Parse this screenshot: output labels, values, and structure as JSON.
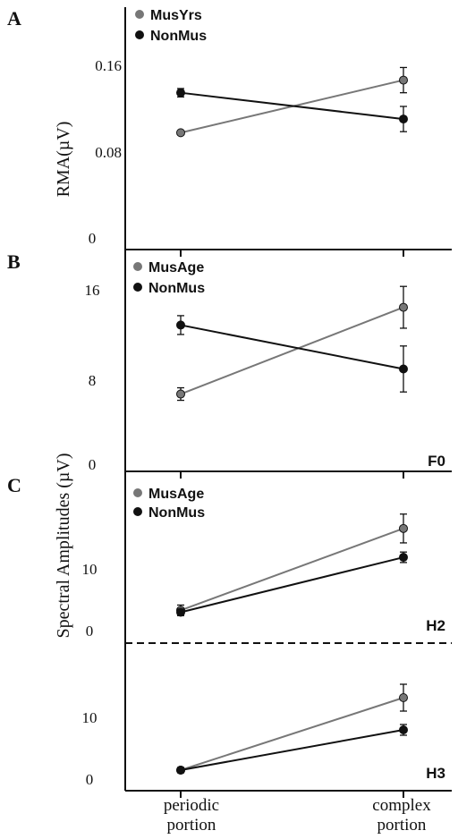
{
  "figure": {
    "panel_letters": [
      "A",
      "B",
      "C"
    ],
    "x_categories": [
      {
        "line1": "periodic",
        "line2": "portion"
      },
      {
        "line1": "complex",
        "line2": "portion"
      }
    ],
    "colors": {
      "gray_series": "#777777",
      "black_series": "#111111",
      "axis": "#111111"
    }
  },
  "chart_data": [
    {
      "type": "line",
      "panel": "A",
      "ylabel": "RMA(µV)",
      "yticks": [
        "0.16",
        "0.08",
        "0"
      ],
      "ytick_values": [
        0.16,
        0.08,
        0
      ],
      "ylim": [
        0,
        0.21
      ],
      "categories": [
        "periodic portion",
        "complex portion"
      ],
      "legend": [
        "MusYrs",
        "NonMus"
      ],
      "series": [
        {
          "name": "MusYrs",
          "color": "#777777",
          "values": [
            0.1,
            0.15
          ],
          "errors": [
            0.0,
            0.012
          ]
        },
        {
          "name": "NonMus",
          "color": "#111111",
          "values": [
            0.138,
            0.113
          ],
          "errors": [
            0.004,
            0.012
          ]
        }
      ]
    },
    {
      "type": "line",
      "panel": "B",
      "ylabel": "Spectral Amplitudes (µV)",
      "harmonic_label": "F0",
      "yticks": [
        "16",
        "8",
        "0"
      ],
      "ytick_values": [
        16,
        8,
        0
      ],
      "ylim": [
        0,
        19
      ],
      "categories": [
        "periodic portion",
        "complex portion"
      ],
      "legend": [
        "MusAge",
        "NonMus"
      ],
      "series": [
        {
          "name": "MusAge",
          "color": "#777777",
          "values": [
            6.8,
            15.1
          ],
          "errors": [
            0.6,
            2.0
          ]
        },
        {
          "name": "NonMus",
          "color": "#111111",
          "values": [
            13.4,
            9.2
          ],
          "errors": [
            0.9,
            2.2
          ]
        }
      ]
    },
    {
      "type": "line",
      "panel": "C",
      "harmonic_label": "H2",
      "yticks": [
        "10",
        "0"
      ],
      "ytick_values": [
        10,
        0
      ],
      "ylim": [
        0,
        22
      ],
      "categories": [
        "periodic portion",
        "complex portion"
      ],
      "legend": [
        "MusAge",
        "NonMus"
      ],
      "series": [
        {
          "name": "MusAge",
          "color": "#777777",
          "values": [
            3.1,
            15.6
          ],
          "errors": [
            0.8,
            2.2
          ]
        },
        {
          "name": "NonMus",
          "color": "#111111",
          "values": [
            2.8,
            11.2
          ],
          "errors": [
            0.5,
            0.8
          ]
        }
      ]
    },
    {
      "type": "line",
      "panel": "C",
      "harmonic_label": "H3",
      "yticks": [
        "10",
        "0"
      ],
      "ytick_values": [
        10,
        0
      ],
      "ylim": [
        0,
        18
      ],
      "categories": [
        "periodic portion",
        "complex portion"
      ],
      "legend": [],
      "series": [
        {
          "name": "MusAge",
          "color": "#777777",
          "values": [
            1.2,
            12.0
          ],
          "errors": [
            0.4,
            2.0
          ]
        },
        {
          "name": "NonMus",
          "color": "#111111",
          "values": [
            1.2,
            7.2
          ],
          "errors": [
            0.3,
            0.8
          ]
        }
      ]
    }
  ]
}
